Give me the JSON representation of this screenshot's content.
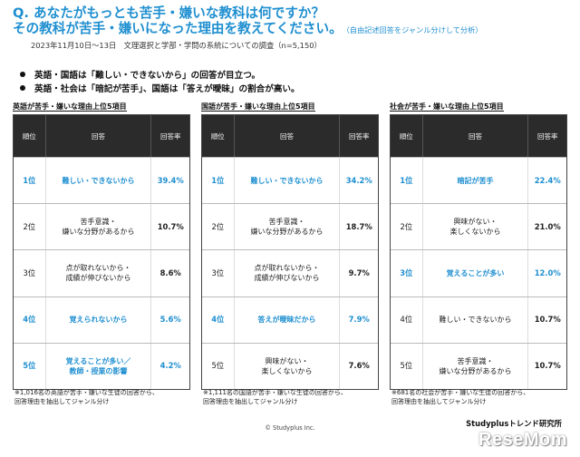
{
  "title": {
    "line1": "Q. あなたがもっとも苦手・嫌いな教科は何ですか？",
    "line2": "その教科が苦手・嫌いになった理由を教えてください。",
    "note": "（自由記述回答をジャンル分けして分析）"
  },
  "subtitle": "2023年11月10日～13日　文理選択と学部・学問の系統についての調査（n=5,150）",
  "bullets": [
    "英語・国語は「難しい・できないから」の回答が目立つ。",
    "英語・社会は「暗記が苦手」、国語は「答えが曖昧」の割合が高い。"
  ],
  "headers": {
    "rank": "順位",
    "answer": "回答",
    "rate": "回答率"
  },
  "panels": [
    {
      "title": "英語が苦手・嫌いな理由上位5項目",
      "rows": [
        {
          "rank": "1位",
          "answer": "難しい・できないから",
          "rate": "39.4%",
          "hl": true
        },
        {
          "rank": "2位",
          "answer": "苦手意識・\n嫌いな分野があるから",
          "rate": "10.7%",
          "hl": false
        },
        {
          "rank": "3位",
          "answer": "点が取れないから・\n成績が伸びないから",
          "rate": "8.6%",
          "hl": false
        },
        {
          "rank": "4位",
          "answer": "覚えられないから",
          "rate": "5.6%",
          "hl": true
        },
        {
          "rank": "5位",
          "answer": "覚えることが多い／\n教師・授業の影響",
          "rate": "4.2%",
          "hl": true
        }
      ],
      "footnote": "※1,016名の英語が苦手・嫌いな生徒の回答から、\n回答理由を抽出してジャンル分け"
    },
    {
      "title": "国語が苦手・嫌いな理由上位5項目",
      "rows": [
        {
          "rank": "1位",
          "answer": "難しい・できないから",
          "rate": "34.2%",
          "hl": true
        },
        {
          "rank": "2位",
          "answer": "苦手意識・\n嫌いな分野があるから",
          "rate": "18.7%",
          "hl": false
        },
        {
          "rank": "3位",
          "answer": "点が取れないから・\n成績が伸びないから",
          "rate": "9.7%",
          "hl": false
        },
        {
          "rank": "4位",
          "answer": "答えが曖昧だから",
          "rate": "7.9%",
          "hl": true
        },
        {
          "rank": "5位",
          "answer": "興味がない・\n楽しくないから",
          "rate": "7.6%",
          "hl": false
        }
      ],
      "footnote": "※1,111名の国語が苦手・嫌いな生徒の回答から、\n回答理由を抽出してジャンル分け"
    },
    {
      "title": "社会が苦手・嫌いな理由上位5項目",
      "rows": [
        {
          "rank": "1位",
          "answer": "暗記が苦手",
          "rate": "22.4%",
          "hl": true
        },
        {
          "rank": "2位",
          "answer": "興味がない・\n楽しくないから",
          "rate": "21.0%",
          "hl": false
        },
        {
          "rank": "3位",
          "answer": "覚えることが多い",
          "rate": "12.0%",
          "hl": true
        },
        {
          "rank": "4位",
          "answer": "難しい・できないから",
          "rate": "10.7%",
          "hl": false
        },
        {
          "rank": "5位",
          "answer": "苦手意識・\n嫌いな分野があるから",
          "rate": "10.7%",
          "hl": false
        }
      ],
      "footnote": "※681名の社会が苦手・嫌いな生徒の回答から、\n回答理由を抽出してジャンル分け"
    }
  ],
  "copyright": "© Studyplus Inc.",
  "brand": "Studyplusトレンド研究所",
  "logo": "ReseMom"
}
